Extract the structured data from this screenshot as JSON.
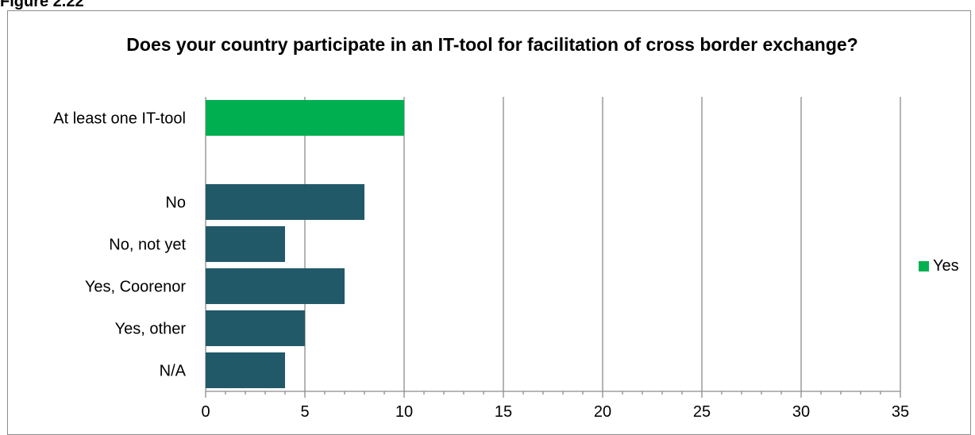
{
  "figure_label": "Figure 2.22",
  "chart_data": {
    "type": "bar",
    "orientation": "horizontal",
    "title": "Does your country participate in an IT-tool for facilitation of cross border exchange?",
    "categories": [
      "At least one IT-tool",
      "",
      "No",
      "No, not yet",
      "Yes, Coorenor",
      "Yes, other",
      "N/A"
    ],
    "values": [
      10,
      null,
      8,
      4,
      7,
      5,
      4
    ],
    "bar_colors": [
      "#00b050",
      null,
      "#215968",
      "#215968",
      "#215968",
      "#215968",
      "#215968"
    ],
    "xlim": [
      0,
      35
    ],
    "xticks": [
      "0",
      "5",
      "10",
      "15",
      "20",
      "25",
      "30",
      "35"
    ],
    "grid": "vertical",
    "legend": {
      "position": "right",
      "entries": [
        {
          "name": "Yes",
          "color": "#00b050"
        }
      ]
    }
  }
}
